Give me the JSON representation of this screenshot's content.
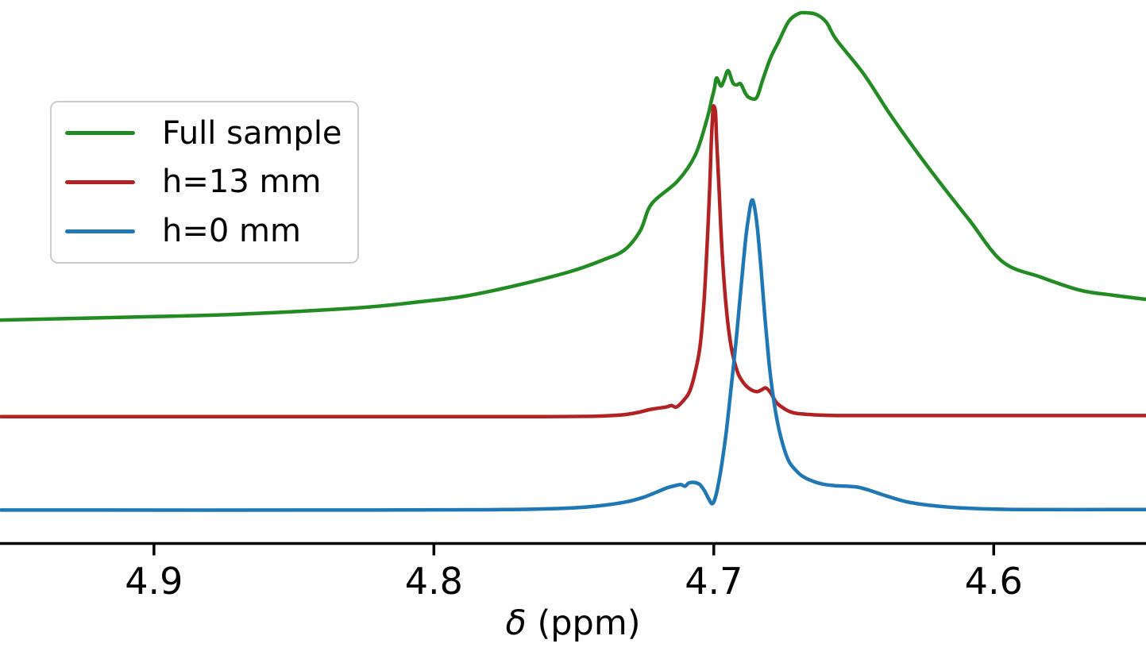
{
  "chart_data": {
    "type": "line",
    "title": "",
    "xlabel": "δ (ppm)",
    "axis_color": "#000000",
    "x_axis": {
      "label": "δ (ppm)",
      "label_symbol": "δ",
      "label_rest": " (ppm)",
      "reversed": true,
      "range_left": 4.955,
      "range_right": 4.5456,
      "ticks": [
        4.9,
        4.8,
        4.7,
        4.6
      ],
      "tick_labels": [
        "4.9",
        "4.8",
        "4.7",
        "4.6"
      ]
    },
    "y_axis": {
      "visible": false,
      "range": [
        0,
        1.05
      ],
      "note": "no y-axis spine, ticks or labels shown; intensities normalized to tallest peak"
    },
    "legend": {
      "position": "upper-left",
      "entries": [
        "Full sample",
        "h=13 mm",
        "h=0 mm"
      ]
    },
    "series": [
      {
        "name": "Full sample",
        "color": "#228B22",
        "peak_ppm": 4.668,
        "points": [
          [
            4.9547,
            0.421
          ],
          [
            4.9122,
            0.426
          ],
          [
            4.8697,
            0.432
          ],
          [
            4.8271,
            0.444
          ],
          [
            4.8073,
            0.454
          ],
          [
            4.7889,
            0.466
          ],
          [
            4.7699,
            0.487
          ],
          [
            4.7509,
            0.513
          ],
          [
            4.7392,
            0.535
          ],
          [
            4.7319,
            0.553
          ],
          [
            4.7262,
            0.59
          ],
          [
            4.7222,
            0.64
          ],
          [
            4.7129,
            0.683
          ],
          [
            4.7066,
            0.732
          ],
          [
            4.7024,
            0.8
          ],
          [
            4.7009,
            0.833
          ],
          [
            4.6998,
            0.857
          ],
          [
            4.699,
            0.877
          ],
          [
            4.6975,
            0.862
          ],
          [
            4.6964,
            0.872
          ],
          [
            4.6949,
            0.891
          ],
          [
            4.6932,
            0.868
          ],
          [
            4.6918,
            0.864
          ],
          [
            4.6904,
            0.866
          ],
          [
            4.6887,
            0.848
          ],
          [
            4.6873,
            0.84
          ],
          [
            4.6847,
            0.84
          ],
          [
            4.6825,
            0.874
          ],
          [
            4.6797,
            0.915
          ],
          [
            4.6768,
            0.946
          ],
          [
            4.6732,
            0.984
          ],
          [
            4.6698,
            0.998
          ],
          [
            4.6675,
            1.0
          ],
          [
            4.6635,
            0.997
          ],
          [
            4.6598,
            0.982
          ],
          [
            4.6562,
            0.949
          ],
          [
            4.6465,
            0.885
          ],
          [
            4.6372,
            0.81
          ],
          [
            4.6278,
            0.74
          ],
          [
            4.6182,
            0.673
          ],
          [
            4.6088,
            0.61
          ],
          [
            4.5969,
            0.531
          ],
          [
            4.5833,
            0.502
          ],
          [
            4.5691,
            0.477
          ],
          [
            4.5578,
            0.468
          ],
          [
            4.5456,
            0.46
          ]
        ]
      },
      {
        "name": "h=13 mm",
        "color": "#B22222",
        "peak_ppm": 4.7,
        "points": [
          [
            4.9547,
            0.239
          ],
          [
            4.85,
            0.239
          ],
          [
            4.76,
            0.239
          ],
          [
            4.7336,
            0.242
          ],
          [
            4.7222,
            0.253
          ],
          [
            4.7171,
            0.257
          ],
          [
            4.7151,
            0.26
          ],
          [
            4.7134,
            0.257
          ],
          [
            4.7109,
            0.269
          ],
          [
            4.7086,
            0.287
          ],
          [
            4.7066,
            0.324
          ],
          [
            4.7049,
            0.372
          ],
          [
            4.7035,
            0.456
          ],
          [
            4.7024,
            0.561
          ],
          [
            4.7015,
            0.665
          ],
          [
            4.7009,
            0.755
          ],
          [
            4.7003,
            0.815
          ],
          [
            4.7,
            0.824
          ],
          [
            4.6994,
            0.812
          ],
          [
            4.699,
            0.762
          ],
          [
            4.6981,
            0.665
          ],
          [
            4.697,
            0.546
          ],
          [
            4.6955,
            0.441
          ],
          [
            4.6938,
            0.371
          ],
          [
            4.6916,
            0.324
          ],
          [
            4.6893,
            0.302
          ],
          [
            4.6868,
            0.29
          ],
          [
            4.6845,
            0.286
          ],
          [
            4.6831,
            0.289
          ],
          [
            4.6814,
            0.293
          ],
          [
            4.6797,
            0.284
          ],
          [
            4.6777,
            0.266
          ],
          [
            4.6754,
            0.256
          ],
          [
            4.6726,
            0.248
          ],
          [
            4.6684,
            0.244
          ],
          [
            4.6542,
            0.241
          ],
          [
            4.6145,
            0.241
          ],
          [
            4.5456,
            0.241
          ]
        ]
      },
      {
        "name": "h=0 mm",
        "color": "#1F77B4",
        "peak_ppm": 4.686,
        "points": [
          [
            4.9547,
            0.063
          ],
          [
            4.82,
            0.063
          ],
          [
            4.7733,
            0.064
          ],
          [
            4.7506,
            0.067
          ],
          [
            4.7393,
            0.072
          ],
          [
            4.7307,
            0.079
          ],
          [
            4.7251,
            0.087
          ],
          [
            4.7208,
            0.096
          ],
          [
            4.7166,
            0.105
          ],
          [
            4.7137,
            0.109
          ],
          [
            4.7118,
            0.111
          ],
          [
            4.7103,
            0.108
          ],
          [
            4.7089,
            0.114
          ],
          [
            4.7069,
            0.115
          ],
          [
            4.705,
            0.111
          ],
          [
            4.7033,
            0.099
          ],
          [
            4.7018,
            0.084
          ],
          [
            4.7007,
            0.075
          ],
          [
            4.6998,
            0.081
          ],
          [
            4.6987,
            0.103
          ],
          [
            4.6973,
            0.144
          ],
          [
            4.6956,
            0.208
          ],
          [
            4.6939,
            0.289
          ],
          [
            4.6919,
            0.389
          ],
          [
            4.6902,
            0.486
          ],
          [
            4.6885,
            0.579
          ],
          [
            4.6873,
            0.625
          ],
          [
            4.6865,
            0.646
          ],
          [
            4.6857,
            0.64
          ],
          [
            4.6845,
            0.598
          ],
          [
            4.6831,
            0.516
          ],
          [
            4.6817,
            0.423
          ],
          [
            4.6803,
            0.342
          ],
          [
            4.6789,
            0.281
          ],
          [
            4.6772,
            0.227
          ],
          [
            4.6752,
            0.184
          ],
          [
            4.6732,
            0.155
          ],
          [
            4.6709,
            0.139
          ],
          [
            4.6684,
            0.127
          ],
          [
            4.665,
            0.118
          ],
          [
            4.6613,
            0.112
          ],
          [
            4.657,
            0.109
          ],
          [
            4.6528,
            0.108
          ],
          [
            4.6485,
            0.106
          ],
          [
            4.6443,
            0.1
          ],
          [
            4.6386,
            0.09
          ],
          [
            4.6315,
            0.079
          ],
          [
            4.623,
            0.072
          ],
          [
            4.6117,
            0.067
          ],
          [
            4.5918,
            0.064
          ],
          [
            4.5456,
            0.064
          ]
        ]
      }
    ]
  }
}
